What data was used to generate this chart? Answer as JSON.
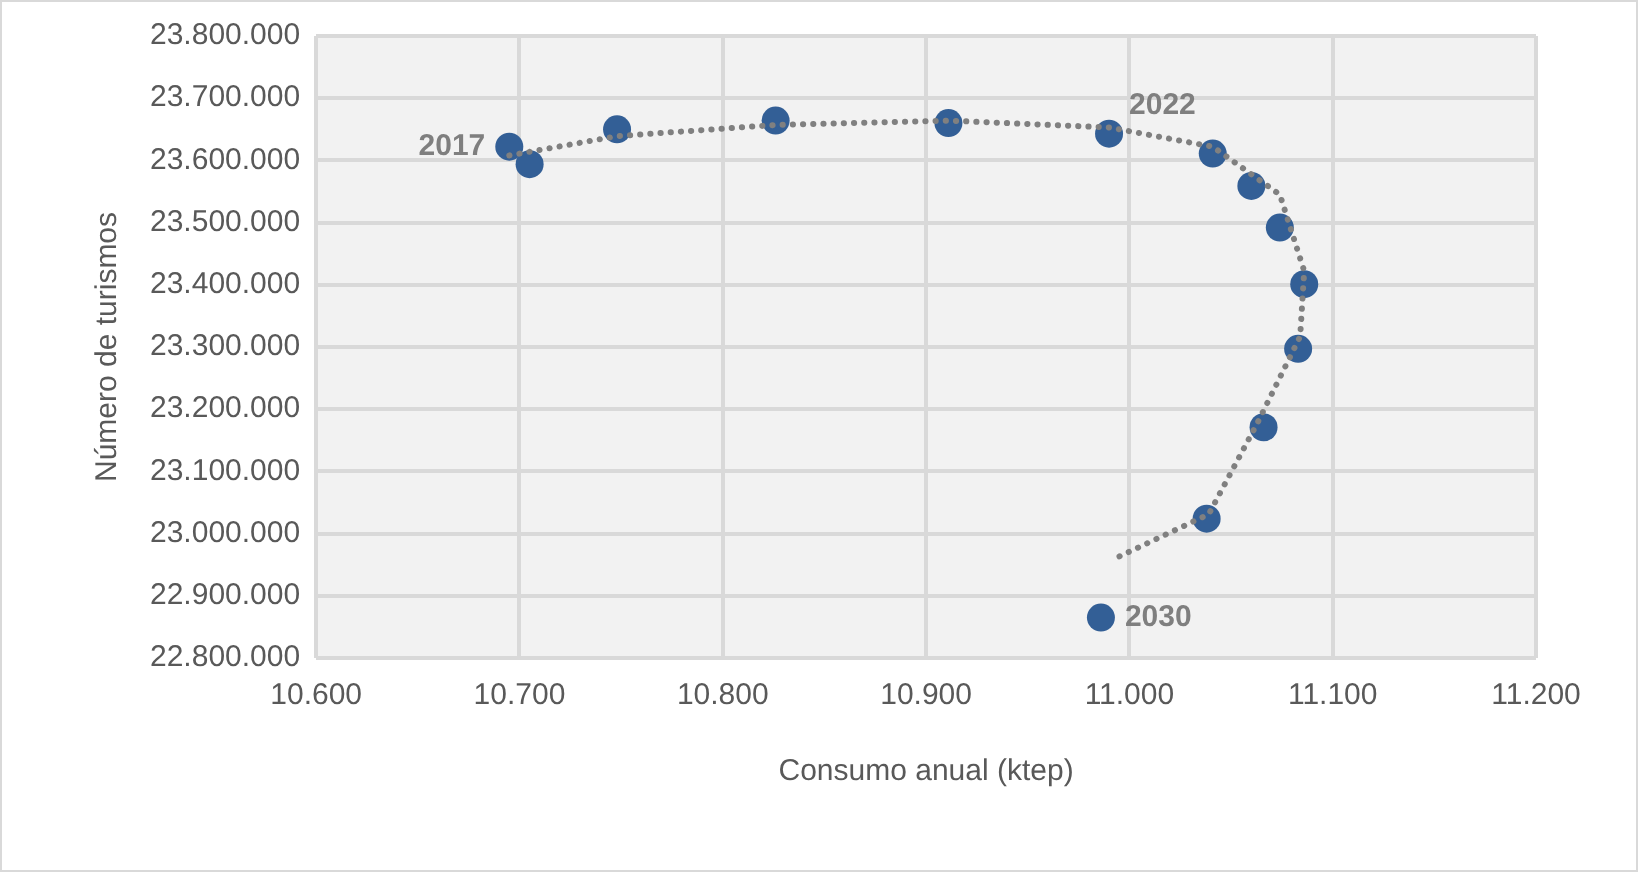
{
  "chart_data": {
    "type": "scatter",
    "xlabel": "Consumo anual (ktep)",
    "ylabel": "Número de turismos",
    "series": [
      {
        "type": "scatter",
        "color": "#335f96",
        "marker": "circle",
        "x": [
          10695,
          10705,
          10748,
          10826,
          10911,
          10990,
          11041,
          11060,
          11074,
          11086,
          11083,
          11066,
          11038,
          10986
        ],
        "values": [
          23622000,
          23594000,
          23650000,
          23664000,
          23660000,
          23643000,
          23611000,
          23559000,
          23492000,
          23401000,
          23297000,
          23171000,
          23024000,
          22865000
        ]
      },
      {
        "type": "line",
        "color": "#808080",
        "line_style": "dotted",
        "marker": "none",
        "x": [
          10695,
          10748,
          10826,
          10911,
          10990,
          11041,
          11074,
          11086,
          11084,
          11063,
          11039,
          10991
        ],
        "values": [
          23608000,
          23639000,
          23657000,
          23664000,
          23653000,
          23622000,
          23545000,
          23422000,
          23317000,
          23178000,
          23031000,
          22957000
        ]
      }
    ],
    "annotations": [
      {
        "text": "2017",
        "x": 10695,
        "y": 23622000
      },
      {
        "text": "2022",
        "x": 10990,
        "y": 23643000
      },
      {
        "text": "2030",
        "x": 10986,
        "y": 22865000
      }
    ],
    "xlim": [
      10600,
      11200
    ],
    "xticks": [
      {
        "value": 10600,
        "label": "10.600"
      },
      {
        "value": 10700,
        "label": "10.700"
      },
      {
        "value": 10800,
        "label": "10.800"
      },
      {
        "value": 10900,
        "label": "10.900"
      },
      {
        "value": 11000,
        "label": "11.000"
      },
      {
        "value": 11100,
        "label": "11.100"
      },
      {
        "value": 11200,
        "label": "11.200"
      }
    ],
    "ylim": [
      22800000,
      23800000
    ],
    "yticks": [
      {
        "value": 22800000,
        "label": "22.800.000"
      },
      {
        "value": 22900000,
        "label": "22.900.000"
      },
      {
        "value": 23000000,
        "label": "23.000.000"
      },
      {
        "value": 23100000,
        "label": "23.100.000"
      },
      {
        "value": 23200000,
        "label": "23.200.000"
      },
      {
        "value": 23300000,
        "label": "23.300.000"
      },
      {
        "value": 23400000,
        "label": "23.400.000"
      },
      {
        "value": 23500000,
        "label": "23.500.000"
      },
      {
        "value": 23600000,
        "label": "23.600.000"
      },
      {
        "value": 23700000,
        "label": "23.700.000"
      },
      {
        "value": 23800000,
        "label": "23.800.000"
      }
    ],
    "grid": true,
    "legend": false
  }
}
